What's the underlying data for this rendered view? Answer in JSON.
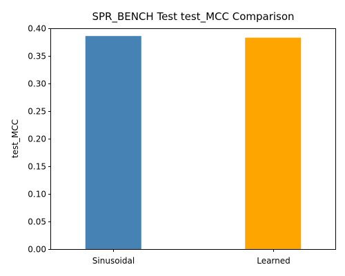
{
  "chart_data": {
    "type": "bar",
    "title": "SPR_BENCH Test test_MCC Comparison",
    "xlabel": "",
    "ylabel": "test_MCC",
    "categories": [
      "Sinusoidal",
      "Learned"
    ],
    "values": [
      0.386,
      0.383
    ],
    "colors": [
      "#4682b4",
      "#ffa500"
    ],
    "ylim": [
      0,
      0.4
    ],
    "yticks": [
      0.0,
      0.05,
      0.1,
      0.15,
      0.2,
      0.25,
      0.3,
      0.35,
      0.4
    ],
    "ytick_labels": [
      "0.00",
      "0.05",
      "0.10",
      "0.15",
      "0.20",
      "0.25",
      "0.30",
      "0.35",
      "0.40"
    ],
    "grid": false,
    "legend": "none"
  }
}
